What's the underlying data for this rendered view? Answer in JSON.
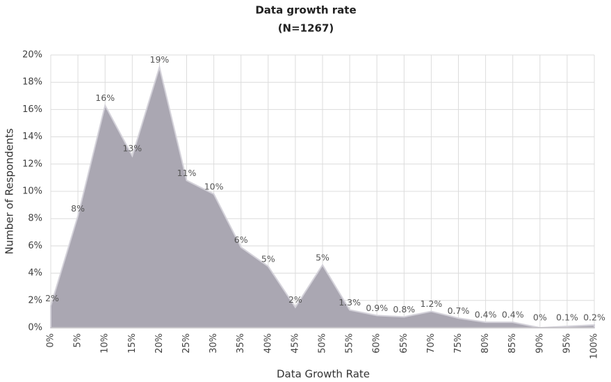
{
  "chart_data": {
    "type": "area",
    "title": "Data growth rate",
    "subtitle": "(N=1267)",
    "x_label": "Data Growth Rate",
    "y_label": "Number of Respondents",
    "categories": [
      "0%",
      "5%",
      "10%",
      "15%",
      "20%",
      "25%",
      "30%",
      "35%",
      "40%",
      "45%",
      "50%",
      "55%",
      "60%",
      "65%",
      "70%",
      "75%",
      "80%",
      "85%",
      "90%",
      "95%",
      "100%"
    ],
    "values": [
      1.6,
      8.2,
      16.3,
      12.6,
      19.1,
      10.8,
      9.8,
      5.9,
      4.5,
      1.5,
      4.6,
      1.3,
      0.9,
      0.8,
      1.2,
      0.7,
      0.4,
      0.4,
      0,
      0.1,
      0.2
    ],
    "value_labels": [
      "2%",
      "8%",
      "16%",
      "13%",
      "19%",
      "11%",
      "10%",
      "6%",
      "5%",
      "2%",
      "5%",
      "1.3%",
      "0.9%",
      "0.8%",
      "1.2%",
      "0.7%",
      "0.4%",
      "0.4%",
      "0%",
      "0.1%",
      "0.2%"
    ],
    "color": "#aaa7b2",
    "ylim": [
      0,
      20
    ],
    "yticks": [
      {
        "value": 0,
        "label": "0%"
      },
      {
        "value": 2,
        "label": "2%"
      },
      {
        "value": 4,
        "label": "4%"
      },
      {
        "value": 6,
        "label": "6%"
      },
      {
        "value": 8,
        "label": "8%"
      },
      {
        "value": 10,
        "label": "10%"
      },
      {
        "value": 12,
        "label": "12%"
      },
      {
        "value": 14,
        "label": "14%"
      },
      {
        "value": 16,
        "label": "16%"
      },
      {
        "value": 18,
        "label": "18%"
      },
      {
        "value": 20,
        "label": "20%"
      }
    ],
    "grid": true
  }
}
